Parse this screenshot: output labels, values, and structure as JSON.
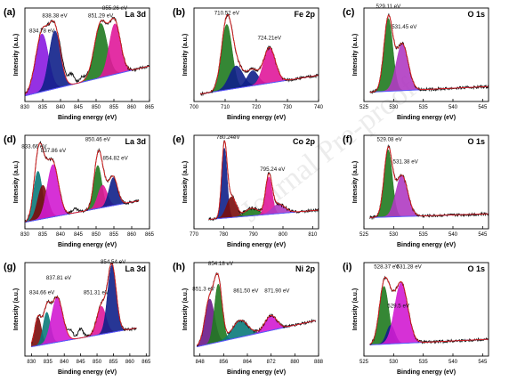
{
  "figure": {
    "watermark": "Journal Pre-proof"
  },
  "chart_data": [
    {
      "panel": "(a)",
      "title": "La 3d",
      "type": "line",
      "xlabel": "Binding energy (eV)",
      "ylabel": "Intensity (a.u.)",
      "xlim": [
        830,
        865
      ],
      "xticks": [
        830,
        835,
        840,
        845,
        850,
        855,
        860,
        865
      ],
      "ylim": [
        0,
        1
      ],
      "baseline": [
        [
          830,
          0.06
        ],
        [
          865,
          0.38
        ]
      ],
      "raw_extra": [
        [
          840.5,
          0.12
        ],
        [
          843,
          0.28
        ],
        [
          846,
          0.12
        ]
      ],
      "peaks": [
        {
          "center": 834.78,
          "height": 0.62,
          "width": 1.8,
          "color": "#8a1be0"
        },
        {
          "center": 838.38,
          "height": 0.62,
          "width": 1.6,
          "color": "#10208a"
        },
        {
          "center": 851.29,
          "height": 0.58,
          "width": 1.8,
          "color": "#1f7a1f"
        },
        {
          "center": 855.26,
          "height": 0.54,
          "width": 1.6,
          "color": "#e0189a"
        }
      ],
      "labels": [
        {
          "text": "834.78 eV",
          "x": 834.78,
          "y": 0.74
        },
        {
          "text": "838.38 eV",
          "x": 838.38,
          "y": 0.9
        },
        {
          "text": "851.29 eV",
          "x": 851.29,
          "y": 0.9
        },
        {
          "text": "855.26 eV",
          "x": 855.26,
          "y": 0.98
        }
      ]
    },
    {
      "panel": "(b)",
      "title": "Fe 2p",
      "type": "line",
      "xlabel": "Binding energy (eV)",
      "ylabel": "Intensity (a.u.)",
      "xlim": [
        700,
        740
      ],
      "xticks": [
        700,
        710,
        720,
        730,
        740
      ],
      "ylim": [
        0,
        1
      ],
      "baseline": [
        [
          702,
          0.08
        ],
        [
          740,
          0.28
        ]
      ],
      "raw_extra": [],
      "peaks": [
        {
          "center": 710.52,
          "height": 0.7,
          "width": 1.7,
          "color": "#1f7a1f"
        },
        {
          "center": 713.5,
          "height": 0.24,
          "width": 2.2,
          "color": "#10208a"
        },
        {
          "center": 718.8,
          "height": 0.16,
          "width": 1.8,
          "color": "#10208a"
        },
        {
          "center": 724.21,
          "height": 0.38,
          "width": 1.9,
          "color": "#e0189a"
        }
      ],
      "labels": [
        {
          "text": "710.52 eV",
          "x": 710.52,
          "y": 0.93
        },
        {
          "text": "724.21eV",
          "x": 724.21,
          "y": 0.66
        }
      ]
    },
    {
      "panel": "(c)",
      "title": "O 1s",
      "type": "line",
      "xlabel": "Binding energy (eV)",
      "ylabel": "Intensity (a.u.)",
      "xlim": [
        525,
        546
      ],
      "xticks": [
        525,
        530,
        535,
        540,
        545
      ],
      "ylim": [
        0,
        1
      ],
      "baseline": [
        [
          526,
          0.1
        ],
        [
          546,
          0.16
        ]
      ],
      "raw_extra": [],
      "peaks": [
        {
          "center": 529.11,
          "height": 0.78,
          "width": 0.75,
          "color": "#1f7a1f"
        },
        {
          "center": 531.45,
          "height": 0.5,
          "width": 1.0,
          "color": "#b03bc2"
        }
      ],
      "labels": [
        {
          "text": "529.11 eV",
          "x": 529.11,
          "y": 1.0
        },
        {
          "text": "531.45 eV",
          "x": 531.8,
          "y": 0.78
        }
      ]
    },
    {
      "panel": "(d)",
      "title": "La 3d",
      "type": "line",
      "xlabel": "Binding energy (eV)",
      "ylabel": "Intensity (a.u.)",
      "xlim": [
        830,
        865
      ],
      "xticks": [
        830,
        835,
        840,
        845,
        850,
        855,
        860,
        865
      ],
      "ylim": [
        0,
        1
      ],
      "baseline": [
        [
          830,
          0.07
        ],
        [
          862,
          0.3
        ]
      ],
      "raw_extra": [
        [
          844,
          0.1
        ]
      ],
      "peaks": [
        {
          "center": 833.66,
          "height": 0.52,
          "width": 1.2,
          "color": "#0b7a7a"
        },
        {
          "center": 835.0,
          "height": 0.36,
          "width": 1.4,
          "color": "#7a0d0d"
        },
        {
          "center": 837.86,
          "height": 0.56,
          "width": 1.6,
          "color": "#d21bd2"
        },
        {
          "center": 850.46,
          "height": 0.46,
          "width": 1.1,
          "color": "#1f7a1f"
        },
        {
          "center": 851.8,
          "height": 0.24,
          "width": 1.3,
          "color": "#e0189a"
        },
        {
          "center": 854.82,
          "height": 0.3,
          "width": 1.2,
          "color": "#10208a"
        }
      ],
      "labels": [
        {
          "text": "833.66 eV",
          "x": 832.6,
          "y": 0.86
        },
        {
          "text": "837.86 eV",
          "x": 838.0,
          "y": 0.82
        },
        {
          "text": "850.46 eV",
          "x": 850.46,
          "y": 0.94
        },
        {
          "text": "854.82 eV",
          "x": 855.4,
          "y": 0.74
        }
      ]
    },
    {
      "panel": "(e)",
      "title": "Co 2p",
      "type": "line",
      "xlabel": "Binding energy (eV)",
      "ylabel": "Intensity (a.u.)",
      "xlim": [
        770,
        812
      ],
      "xticks": [
        770,
        780,
        790,
        800,
        810
      ],
      "ylim": [
        0,
        1
      ],
      "baseline": [
        [
          775,
          0.1
        ],
        [
          812,
          0.2
        ]
      ],
      "raw_extra": [],
      "peaks": [
        {
          "center": 780.24,
          "height": 0.75,
          "width": 0.9,
          "color": "#10208a"
        },
        {
          "center": 782.6,
          "height": 0.22,
          "width": 1.6,
          "color": "#7a0d0d"
        },
        {
          "center": 789.5,
          "height": 0.08,
          "width": 2.2,
          "color": "#1f7a1f"
        },
        {
          "center": 795.24,
          "height": 0.4,
          "width": 1.1,
          "color": "#e0189a"
        },
        {
          "center": 798.5,
          "height": 0.1,
          "width": 2.2,
          "color": "#b03bc2"
        }
      ],
      "labels": [
        {
          "text": "780.24eV",
          "x": 781.5,
          "y": 0.96
        },
        {
          "text": "795.24 eV",
          "x": 796.5,
          "y": 0.62
        }
      ]
    },
    {
      "panel": "(f)",
      "title": "O 1s",
      "type": "line",
      "xlabel": "Binding energy (eV)",
      "ylabel": "Intensity (a.u.)",
      "xlim": [
        525,
        546
      ],
      "xticks": [
        525,
        530,
        535,
        540,
        545
      ],
      "ylim": [
        0,
        1
      ],
      "baseline": [
        [
          526,
          0.12
        ],
        [
          546,
          0.16
        ]
      ],
      "raw_extra": [],
      "peaks": [
        {
          "center": 529.08,
          "height": 0.72,
          "width": 0.7,
          "color": "#1f7a1f"
        },
        {
          "center": 531.38,
          "height": 0.44,
          "width": 1.0,
          "color": "#b03bc2"
        }
      ],
      "labels": [
        {
          "text": "529.08 eV",
          "x": 529.3,
          "y": 0.94
        },
        {
          "text": "531.38 eV",
          "x": 532.0,
          "y": 0.7
        }
      ]
    },
    {
      "panel": "(g)",
      "title": "La 3d",
      "type": "line",
      "xlabel": "Binding energy (eV)",
      "ylabel": "Intensity (a.u.)",
      "xlim": [
        828,
        866
      ],
      "xticks": [
        830,
        835,
        840,
        845,
        850,
        855,
        860,
        865
      ],
      "ylim": [
        0,
        1
      ],
      "baseline": [
        [
          830,
          0.1
        ],
        [
          862,
          0.3
        ]
      ],
      "raw_extra": [
        [
          842,
          0.2
        ],
        [
          845,
          0.24
        ]
      ],
      "peaks": [
        {
          "center": 832.0,
          "height": 0.3,
          "width": 1.0,
          "color": "#7a0d0d"
        },
        {
          "center": 834.66,
          "height": 0.34,
          "width": 1.1,
          "color": "#0b7a7a"
        },
        {
          "center": 837.81,
          "height": 0.48,
          "width": 1.7,
          "color": "#d21bd2"
        },
        {
          "center": 851.31,
          "height": 0.3,
          "width": 1.4,
          "color": "#e0189a"
        },
        {
          "center": 854.54,
          "height": 0.72,
          "width": 1.3,
          "color": "#10208a"
        }
      ],
      "labels": [
        {
          "text": "834.66 eV",
          "x": 833.2,
          "y": 0.66
        },
        {
          "text": "837.81 eV",
          "x": 838.3,
          "y": 0.82
        },
        {
          "text": "851.31 eV",
          "x": 849.7,
          "y": 0.66
        },
        {
          "text": "854.54 eV",
          "x": 854.9,
          "y": 0.99
        }
      ]
    },
    {
      "panel": "(h)",
      "title": "Ni 2p",
      "type": "line",
      "xlabel": "Binding energy (eV)",
      "ylabel": "Intensity (a.u.)",
      "xlim": [
        846,
        888
      ],
      "xticks": [
        848,
        856,
        864,
        872,
        880,
        888
      ],
      "ylim": [
        0,
        1
      ],
      "baseline": [
        [
          847,
          0.1
        ],
        [
          887,
          0.38
        ]
      ],
      "raw_extra": [],
      "peaks": [
        {
          "center": 851.3,
          "height": 0.48,
          "width": 1.6,
          "color": "#6b1a8a"
        },
        {
          "center": 854.18,
          "height": 0.62,
          "width": 1.3,
          "color": "#1f7a1f"
        },
        {
          "center": 861.5,
          "height": 0.18,
          "width": 2.6,
          "color": "#0b7a7a"
        },
        {
          "center": 871.9,
          "height": 0.16,
          "width": 2.0,
          "color": "#d21bd2"
        }
      ],
      "labels": [
        {
          "text": "851.3 eV",
          "x": 849.2,
          "y": 0.7
        },
        {
          "text": "854.18 eV",
          "x": 855.0,
          "y": 0.97
        },
        {
          "text": "861.50 eV",
          "x": 863.5,
          "y": 0.68
        },
        {
          "text": "871.90 eV",
          "x": 874.0,
          "y": 0.68
        }
      ]
    },
    {
      "panel": "(i)",
      "title": "O 1s",
      "type": "line",
      "xlabel": "Binding energy (eV)",
      "ylabel": "Intensity (a.u.)",
      "xlim": [
        525,
        546
      ],
      "xticks": [
        525,
        530,
        535,
        540,
        545
      ],
      "ylim": [
        0,
        1
      ],
      "baseline": [
        [
          526,
          0.12
        ],
        [
          546,
          0.18
        ]
      ],
      "raw_extra": [],
      "peaks": [
        {
          "center": 528.37,
          "height": 0.62,
          "width": 0.8,
          "color": "#1f7a1f"
        },
        {
          "center": 529.5,
          "height": 0.2,
          "width": 0.7,
          "color": "#10208a"
        },
        {
          "center": 531.28,
          "height": 0.65,
          "width": 1.1,
          "color": "#d21bd2"
        }
      ],
      "labels": [
        {
          "text": "528.37 eV",
          "x": 528.8,
          "y": 0.94
        },
        {
          "text": "529.5 eV",
          "x": 530.8,
          "y": 0.52
        },
        {
          "text": "531.28 eV",
          "x": 532.6,
          "y": 0.94
        }
      ]
    }
  ]
}
